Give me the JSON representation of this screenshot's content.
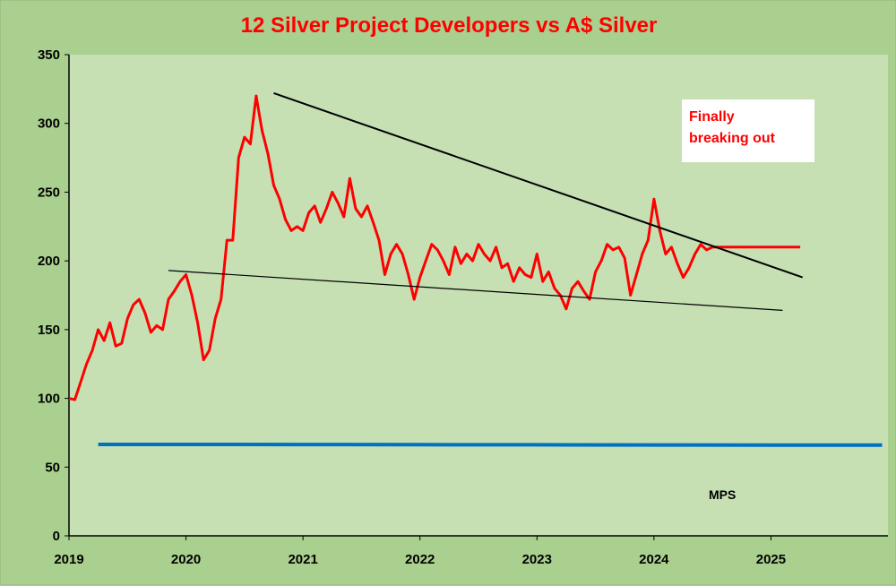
{
  "chart_data": {
    "type": "line",
    "title": "12 Silver Project Developers vs A$ Silver",
    "xlabel": "",
    "ylabel": "",
    "ylim": [
      0,
      350
    ],
    "xlim": [
      2019,
      2026
    ],
    "y_ticks": [
      "0",
      "50",
      "100",
      "150",
      "200",
      "250",
      "300",
      "350"
    ],
    "x_ticks": [
      "2019",
      "2020",
      "2021",
      "2022",
      "2023",
      "2024",
      "2025"
    ],
    "grid": false,
    "colors": {
      "plot_bg": "#c6e0b4",
      "outer_bg": "#a9d08e",
      "developers_line": "#ff0000",
      "aud_silver_line": "#0070c0",
      "trendline": "#000000"
    },
    "annotation": [
      "Finally",
      "breaking out"
    ],
    "series_label_text": "MPS",
    "series": [
      {
        "name": "",
        "x": [
          2019.0,
          2019.05,
          2019.1,
          2019.15,
          2019.2,
          2019.25,
          2019.3,
          2019.35,
          2019.4,
          2019.45,
          2019.5,
          2019.55,
          2019.6,
          2019.65,
          2019.7,
          2019.75,
          2019.8,
          2019.85,
          2019.9,
          2019.95,
          2020.0,
          2020.05,
          2020.1,
          2020.15,
          2020.2,
          2020.25,
          2020.3,
          2020.35,
          2020.4,
          2020.45,
          2020.5,
          2020.55,
          2020.6,
          2020.65,
          2020.7,
          2020.75,
          2020.8,
          2020.85,
          2020.9,
          2020.95,
          2021.0,
          2021.05,
          2021.1,
          2021.15,
          2021.2,
          2021.25,
          2021.3,
          2021.35,
          2021.4,
          2021.45,
          2021.5,
          2021.55,
          2021.6,
          2021.65,
          2021.7,
          2021.75,
          2021.8,
          2021.85,
          2021.9,
          2021.95,
          2022.0,
          2022.05,
          2022.1,
          2022.15,
          2022.2,
          2022.25,
          2022.3,
          2022.35,
          2022.4,
          2022.45,
          2022.5,
          2022.55,
          2022.6,
          2022.65,
          2022.7,
          2022.75,
          2022.8,
          2022.85,
          2022.9,
          2022.95,
          2023.0,
          2023.05,
          2023.1,
          2023.15,
          2023.2,
          2023.25,
          2023.3,
          2023.35,
          2023.4,
          2023.45,
          2023.5,
          2023.55,
          2023.6,
          2023.65,
          2023.7,
          2023.75,
          2023.8,
          2023.85,
          2023.9,
          2023.95,
          2024.0,
          2024.05,
          2024.1,
          2024.15,
          2024.2,
          2024.25,
          2024.3,
          2024.35,
          2024.4,
          2024.45,
          2024.5,
          2024.55,
          2024.6,
          2024.65,
          2024.7,
          2024.75,
          2024.8,
          2024.85,
          2024.9,
          2024.95,
          2025.0,
          2025.05,
          2025.1,
          2025.15,
          2025.2,
          2025.25
        ],
        "values": [
          100,
          99,
          112,
          125,
          135,
          150,
          142,
          155,
          138,
          140,
          158,
          168,
          172,
          162,
          148,
          153,
          150,
          172,
          178,
          185,
          190,
          175,
          155,
          128,
          135,
          158,
          172,
          215,
          215,
          275,
          290,
          285,
          320,
          295,
          278,
          255,
          245,
          230,
          222,
          225,
          222,
          235,
          240,
          228,
          238,
          250,
          242,
          232,
          260,
          238,
          232,
          240,
          228,
          215,
          190,
          205,
          212,
          205,
          190,
          172,
          188,
          200,
          212,
          208,
          200,
          190,
          210,
          198,
          205,
          200,
          212,
          205,
          200,
          210,
          195,
          198,
          185,
          195,
          190,
          188,
          205,
          185,
          192,
          180,
          175,
          165,
          180,
          185,
          178,
          172,
          192,
          200,
          212,
          208,
          210,
          202,
          175,
          190,
          205,
          215,
          245,
          222,
          205,
          210,
          198,
          188,
          195,
          205,
          212,
          208,
          210,
          210,
          210,
          210,
          210,
          210,
          210,
          210,
          210,
          210,
          210,
          210,
          210,
          210,
          210,
          210
        ]
      },
      {
        "name": "",
        "x": [
          2019.25,
          2020.0,
          2021.0,
          2022.0,
          2023.0,
          2024.0,
          2025.0,
          2025.95
        ],
        "values": [
          66.5,
          66.5,
          66.4,
          66.3,
          66.2,
          66.1,
          66.0,
          66.0
        ]
      }
    ],
    "trendlines": [
      {
        "x": [
          2020.75,
          2025.27
        ],
        "values": [
          322,
          188
        ]
      },
      {
        "x": [
          2019.85,
          2025.1
        ],
        "values": [
          193,
          164
        ]
      }
    ]
  }
}
